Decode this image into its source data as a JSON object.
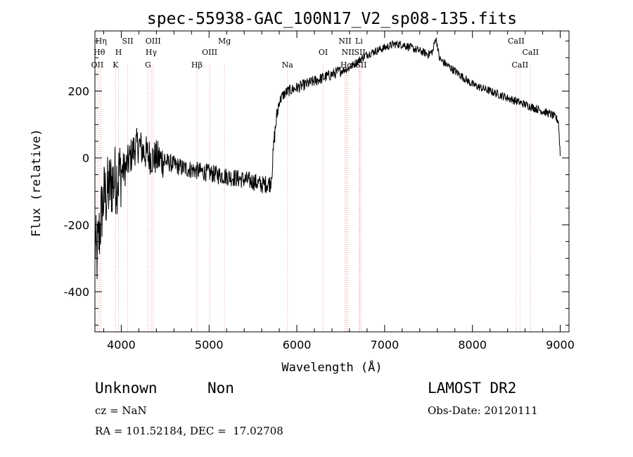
{
  "chart_data": {
    "type": "line",
    "title": "spec-55938-GAC_100N17_V2_sp08-135.fits",
    "xlabel": "Wavelength (Å)",
    "ylabel": "Flux (relative)",
    "xlim": [
      3700,
      9100
    ],
    "ylim": [
      -520,
      380
    ],
    "xticks": [
      4000,
      5000,
      6000,
      7000,
      8000,
      9000
    ],
    "yticks": [
      -400,
      -200,
      0,
      200
    ],
    "grid": false,
    "series": [
      {
        "x": [
          3700,
          3720,
          3740,
          3760,
          3780,
          3800,
          3830,
          3860,
          3900,
          3950,
          4000,
          4050,
          4100,
          4150,
          4200,
          4250,
          4300,
          4350,
          4400,
          4500,
          4600,
          4700,
          4800,
          4900,
          5000,
          5100,
          5200,
          5300,
          5400,
          5500,
          5600,
          5700,
          5720,
          5740,
          5760,
          5780,
          5800,
          5850,
          5900,
          6000,
          6100,
          6200,
          6300,
          6400,
          6500,
          6600,
          6700,
          6800,
          6900,
          7000,
          7100,
          7200,
          7300,
          7400,
          7500,
          7550,
          7580,
          7600,
          7620,
          7650,
          7700,
          7800,
          7900,
          8000,
          8100,
          8200,
          8300,
          8400,
          8500,
          8600,
          8700,
          8800,
          8900,
          8950,
          8980,
          9000
        ],
        "y": [
          -250,
          -300,
          -250,
          -200,
          -150,
          -120,
          -110,
          -90,
          -70,
          -60,
          -40,
          -30,
          0,
          30,
          40,
          20,
          10,
          0,
          0,
          -10,
          -20,
          -30,
          -35,
          -40,
          -45,
          -50,
          -55,
          -60,
          -65,
          -70,
          -80,
          -75,
          -30,
          50,
          100,
          140,
          170,
          190,
          200,
          210,
          220,
          230,
          240,
          250,
          260,
          270,
          290,
          310,
          320,
          330,
          340,
          340,
          330,
          320,
          310,
          320,
          360,
          340,
          300,
          290,
          280,
          260,
          240,
          220,
          210,
          200,
          190,
          180,
          170,
          160,
          150,
          140,
          130,
          120,
          110,
          10
        ]
      }
    ],
    "line_markers": [
      {
        "label": "OII",
        "x": 3727,
        "row": 3
      },
      {
        "label": "Hθ",
        "x": 3750,
        "row": 2
      },
      {
        "label": "Hη",
        "x": 3770,
        "row": 1
      },
      {
        "label": "K",
        "x": 3934,
        "row": 3
      },
      {
        "label": "H",
        "x": 3969,
        "row": 2
      },
      {
        "label": "SII",
        "x": 4072,
        "row": 1
      },
      {
        "label": "G",
        "x": 4304,
        "row": 3
      },
      {
        "label": "Hγ",
        "x": 4341,
        "row": 2
      },
      {
        "label": "OIII",
        "x": 4363,
        "row": 1
      },
      {
        "label": "Hβ",
        "x": 4861,
        "row": 3
      },
      {
        "label": "OIII",
        "x": 5007,
        "row": 2
      },
      {
        "label": "Mg",
        "x": 5175,
        "row": 1
      },
      {
        "label": "Na",
        "x": 5893,
        "row": 3
      },
      {
        "label": "OI",
        "x": 6300,
        "row": 2
      },
      {
        "label": "NII",
        "x": 6548,
        "row": 1
      },
      {
        "label": "NII",
        "x": 6583,
        "row": 2
      },
      {
        "label": "Hα",
        "x": 6563,
        "row": 3
      },
      {
        "label": "SII",
        "x": 6717,
        "row": 2
      },
      {
        "label": "Li",
        "x": 6708,
        "row": 1
      },
      {
        "label": "SII",
        "x": 6731,
        "row": 3
      },
      {
        "label": "CaII",
        "x": 8498,
        "row": 1
      },
      {
        "label": "CaII",
        "x": 8542,
        "row": 3
      },
      {
        "label": "CaII",
        "x": 8662,
        "row": 2
      }
    ]
  },
  "footer": {
    "class_text": "Unknown",
    "subclass_text": "Non",
    "survey_text": "LAMOST DR2",
    "cz_text": "cz = NaN",
    "obs_date_text": "Obs-Date: 20120111",
    "coords_text": "RA = 101.52184, DEC =  17.02708"
  }
}
